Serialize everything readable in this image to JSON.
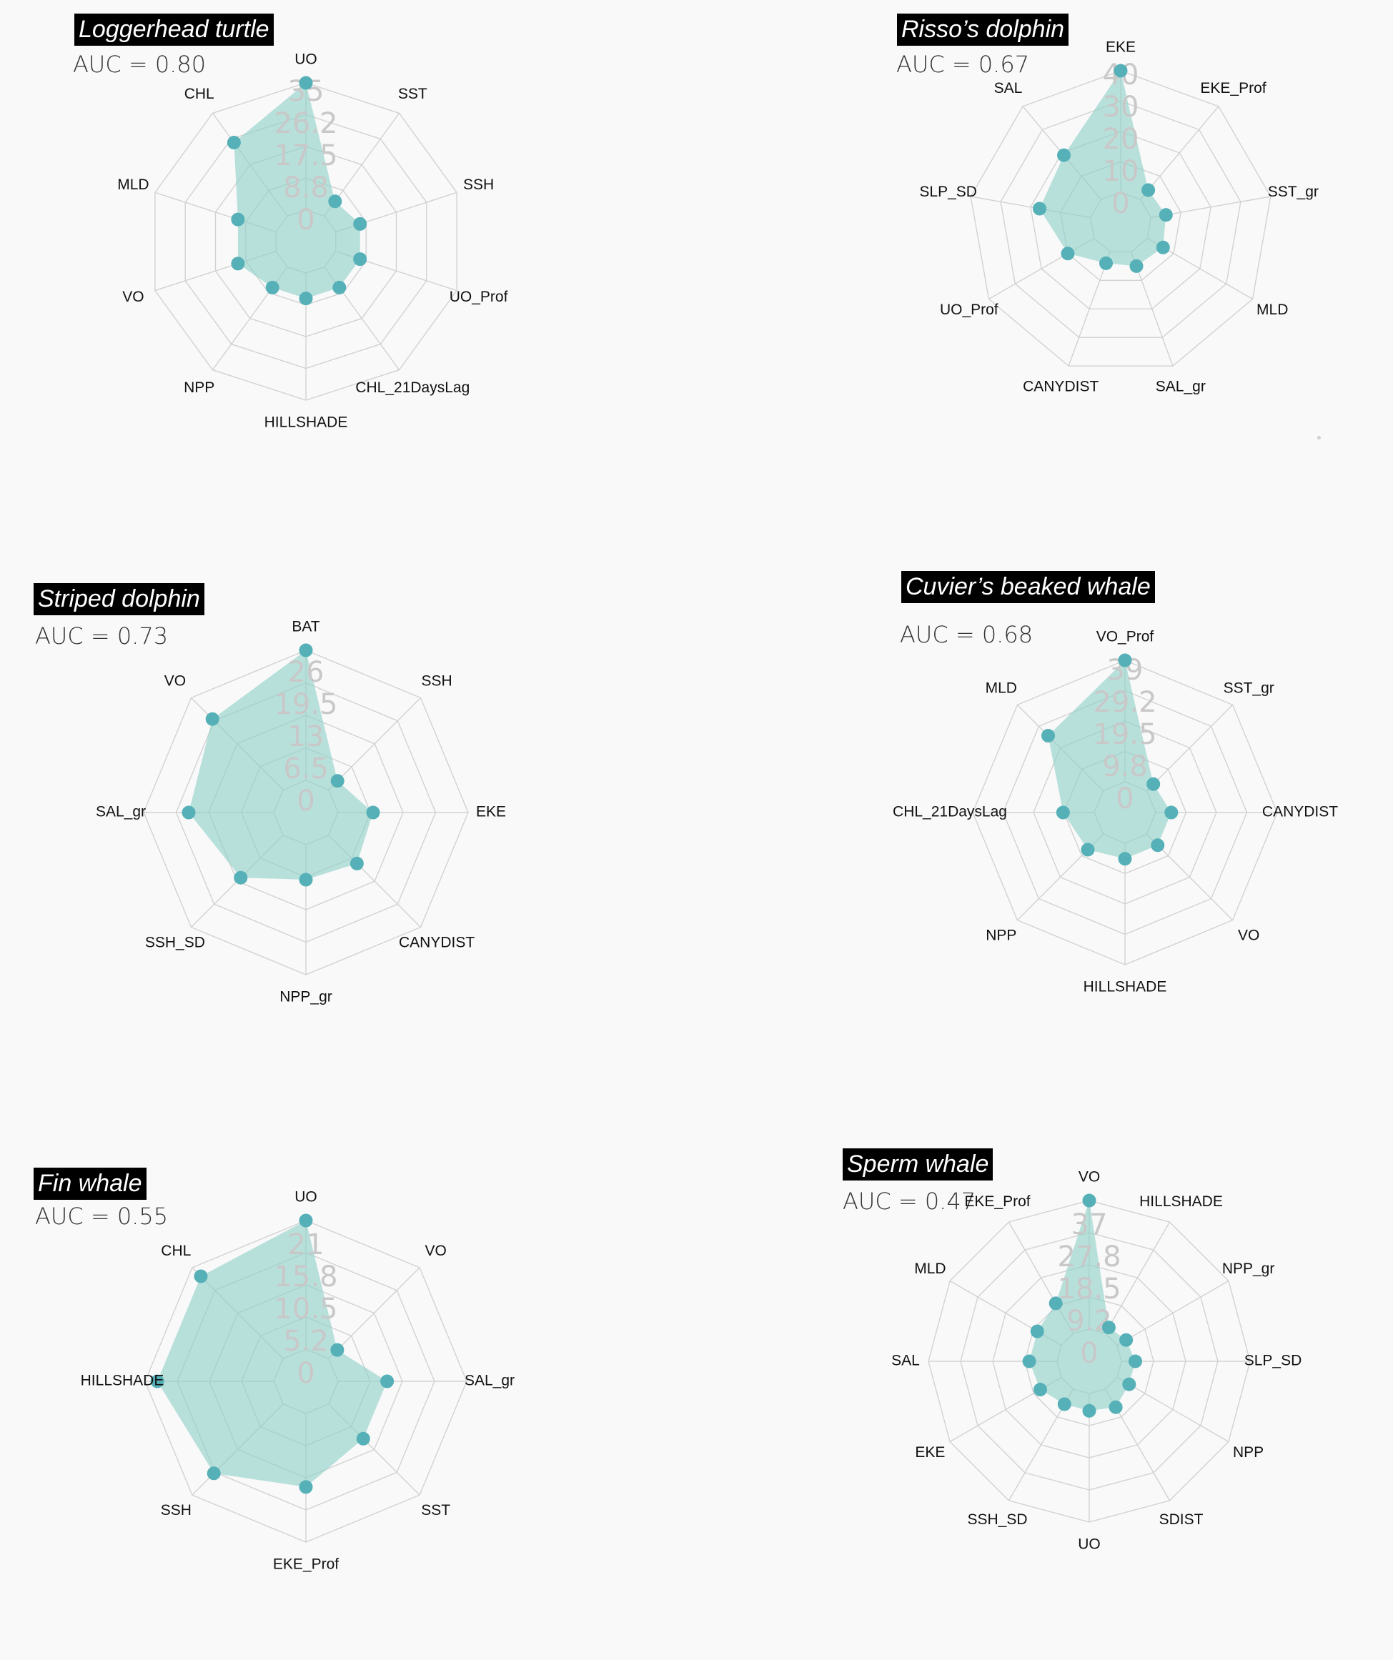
{
  "chart_data": [
    {
      "type": "radar",
      "title": "Loggerhead turtle",
      "subtitle": "AUC = 0.80",
      "axes": [
        "UO",
        "SST",
        "SSH",
        "UO_Prof",
        "CHL_21DaysLag",
        "HILLSHADE",
        "NPP",
        "VO",
        "MLD",
        "CHL"
      ],
      "values": [
        35,
        5,
        7,
        7,
        7,
        7,
        7,
        11,
        11,
        25
      ],
      "radial_ticks": [
        "0",
        "8.8",
        "17.5",
        "26.2",
        "35"
      ],
      "rmax": 35
    },
    {
      "type": "radar",
      "title": "Risso’s dolphin",
      "subtitle": "AUC = 0.67",
      "axes": [
        "EKE",
        "EKE_Prof",
        "SST_gr",
        "MLD",
        "SAL_gr",
        "CANYDIST",
        "UO_Prof",
        "SLP_SD",
        "SAL"
      ],
      "values": [
        40,
        4,
        5,
        6,
        5,
        4,
        10,
        17,
        19
      ],
      "radial_ticks": [
        "0",
        "10",
        "20",
        "30",
        "40"
      ],
      "rmax": 40
    },
    {
      "type": "radar",
      "title": "Striped dolphin",
      "subtitle": "AUC = 0.73",
      "axes": [
        "BAT",
        "SSH",
        "EKE",
        "CANYDIST",
        "NPP_gr",
        "SSH_SD",
        "SAL_gr",
        "VO"
      ],
      "values": [
        26,
        2.5,
        7,
        8,
        7,
        12,
        17,
        20
      ],
      "radial_ticks": [
        "0",
        "6.5",
        "13",
        "19.5",
        "26"
      ],
      "rmax": 26
    },
    {
      "type": "radar",
      "title": "Cuvier’s beaked whale",
      "subtitle": "AUC = 0.68",
      "axes": [
        "VO_Prof",
        "SST_gr",
        "CANYDIST",
        "VO",
        "HILLSHADE",
        "NPP",
        "CHL_21DaysLag",
        "MLD"
      ],
      "values": [
        39,
        3,
        5,
        5,
        5,
        7,
        10,
        25
      ],
      "radial_ticks": [
        "0",
        "9.8",
        "19.5",
        "29.2",
        "39"
      ],
      "rmax": 39
    },
    {
      "type": "radar",
      "title": "Fin whale",
      "subtitle": "AUC = 0.55",
      "axes": [
        "UO",
        "VO",
        "SAL_gr",
        "SST",
        "EKE_Prof",
        "SSH",
        "HILLSHADE",
        "CHL"
      ],
      "values": [
        21,
        2,
        8,
        8,
        12,
        16,
        19,
        19
      ],
      "radial_ticks": [
        "0",
        "5.2",
        "10.5",
        "15.8",
        "21"
      ],
      "rmax": 21
    },
    {
      "type": "radar",
      "title": "Sperm whale",
      "subtitle": "AUC = 0.47",
      "axes": [
        "VO",
        "HILLSHADE",
        "NPP_gr",
        "SLP_SD",
        "NPP",
        "SDIST",
        "UO",
        "SSH_SD",
        "EKE",
        "SAL",
        "MLD",
        "EKE_Prof"
      ],
      "values": [
        37,
        2,
        3,
        4,
        4,
        6,
        5,
        5,
        7,
        8,
        8,
        10
      ],
      "radial_ticks": [
        "0",
        "9.2",
        "18.5",
        "27.8",
        "37"
      ],
      "rmax": 37
    }
  ],
  "colors": {
    "fill": "#8fd1c8",
    "point": "#56b0b7",
    "grid": "#d2d2d2",
    "tick_label": "#c8c8c8",
    "background": "#f9f9f9"
  }
}
